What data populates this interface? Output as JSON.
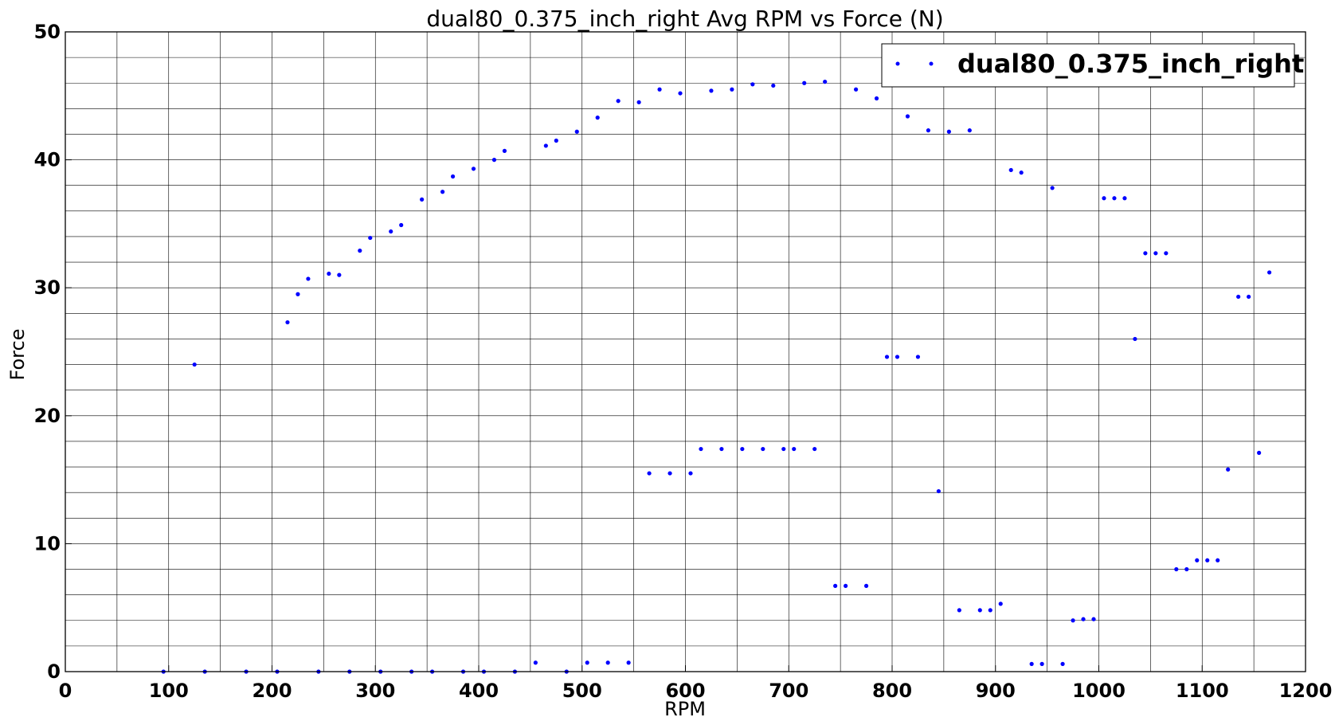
{
  "chart_data": {
    "type": "scatter",
    "title": "dual80_0.375_inch_right Avg RPM vs Force (N)",
    "xlabel": "RPM",
    "ylabel": "Force",
    "xlim": [
      0,
      1200
    ],
    "ylim": [
      0,
      50
    ],
    "xticks": [
      0,
      100,
      200,
      300,
      400,
      500,
      600,
      700,
      800,
      900,
      1000,
      1100,
      1200
    ],
    "yticks": [
      0,
      10,
      20,
      30,
      40,
      50
    ],
    "grid": true,
    "legend_position": "top-right",
    "series_color": "#0000ff",
    "series": [
      {
        "name": "dual80_0.375_inch_right",
        "points": [
          [
            95,
            0
          ],
          [
            125,
            24.0
          ],
          [
            135,
            0
          ],
          [
            175,
            0
          ],
          [
            205,
            0
          ],
          [
            215,
            27.3
          ],
          [
            225,
            29.5
          ],
          [
            235,
            30.7
          ],
          [
            245,
            0
          ],
          [
            255,
            31.1
          ],
          [
            265,
            31.0
          ],
          [
            275,
            0
          ],
          [
            285,
            32.9
          ],
          [
            295,
            33.9
          ],
          [
            305,
            0
          ],
          [
            315,
            34.4
          ],
          [
            325,
            34.9
          ],
          [
            335,
            0
          ],
          [
            345,
            36.9
          ],
          [
            355,
            0
          ],
          [
            365,
            37.5
          ],
          [
            375,
            38.7
          ],
          [
            385,
            0
          ],
          [
            395,
            39.3
          ],
          [
            405,
            0
          ],
          [
            415,
            40.0
          ],
          [
            425,
            40.7
          ],
          [
            435,
            0
          ],
          [
            455,
            0.7
          ],
          [
            465,
            41.1
          ],
          [
            475,
            41.5
          ],
          [
            485,
            0
          ],
          [
            495,
            42.2
          ],
          [
            505,
            0.7
          ],
          [
            515,
            43.3
          ],
          [
            525,
            0.7
          ],
          [
            535,
            44.6
          ],
          [
            545,
            0.7
          ],
          [
            555,
            44.5
          ],
          [
            565,
            15.5
          ],
          [
            575,
            45.5
          ],
          [
            585,
            15.5
          ],
          [
            595,
            45.2
          ],
          [
            605,
            15.5
          ],
          [
            615,
            17.4
          ],
          [
            625,
            45.4
          ],
          [
            635,
            17.4
          ],
          [
            645,
            45.5
          ],
          [
            655,
            17.4
          ],
          [
            665,
            45.9
          ],
          [
            675,
            17.4
          ],
          [
            685,
            45.8
          ],
          [
            695,
            17.4
          ],
          [
            705,
            17.4
          ],
          [
            715,
            46.0
          ],
          [
            725,
            17.4
          ],
          [
            735,
            46.1
          ],
          [
            745,
            6.7
          ],
          [
            755,
            6.7
          ],
          [
            765,
            45.5
          ],
          [
            775,
            6.7
          ],
          [
            785,
            44.8
          ],
          [
            795,
            24.6
          ],
          [
            805,
            24.6
          ],
          [
            815,
            43.4
          ],
          [
            825,
            24.6
          ],
          [
            835,
            42.3
          ],
          [
            845,
            14.1
          ],
          [
            855,
            42.2
          ],
          [
            865,
            4.8
          ],
          [
            875,
            42.3
          ],
          [
            885,
            4.8
          ],
          [
            895,
            4.8
          ],
          [
            905,
            5.3
          ],
          [
            915,
            39.2
          ],
          [
            925,
            39.0
          ],
          [
            935,
            0.6
          ],
          [
            945,
            0.6
          ],
          [
            955,
            37.8
          ],
          [
            965,
            0.6
          ],
          [
            975,
            4.0
          ],
          [
            985,
            4.1
          ],
          [
            995,
            4.1
          ],
          [
            1005,
            37.0
          ],
          [
            1015,
            37.0
          ],
          [
            1025,
            37.0
          ],
          [
            1035,
            26.0
          ],
          [
            1045,
            32.7
          ],
          [
            1055,
            32.7
          ],
          [
            1065,
            32.7
          ],
          [
            1075,
            8.0
          ],
          [
            1085,
            8.0
          ],
          [
            1095,
            8.7
          ],
          [
            1105,
            8.7
          ],
          [
            1115,
            8.7
          ],
          [
            1125,
            15.8
          ],
          [
            1135,
            29.3
          ],
          [
            1145,
            29.3
          ],
          [
            1155,
            17.1
          ],
          [
            1165,
            31.2
          ]
        ]
      }
    ]
  }
}
